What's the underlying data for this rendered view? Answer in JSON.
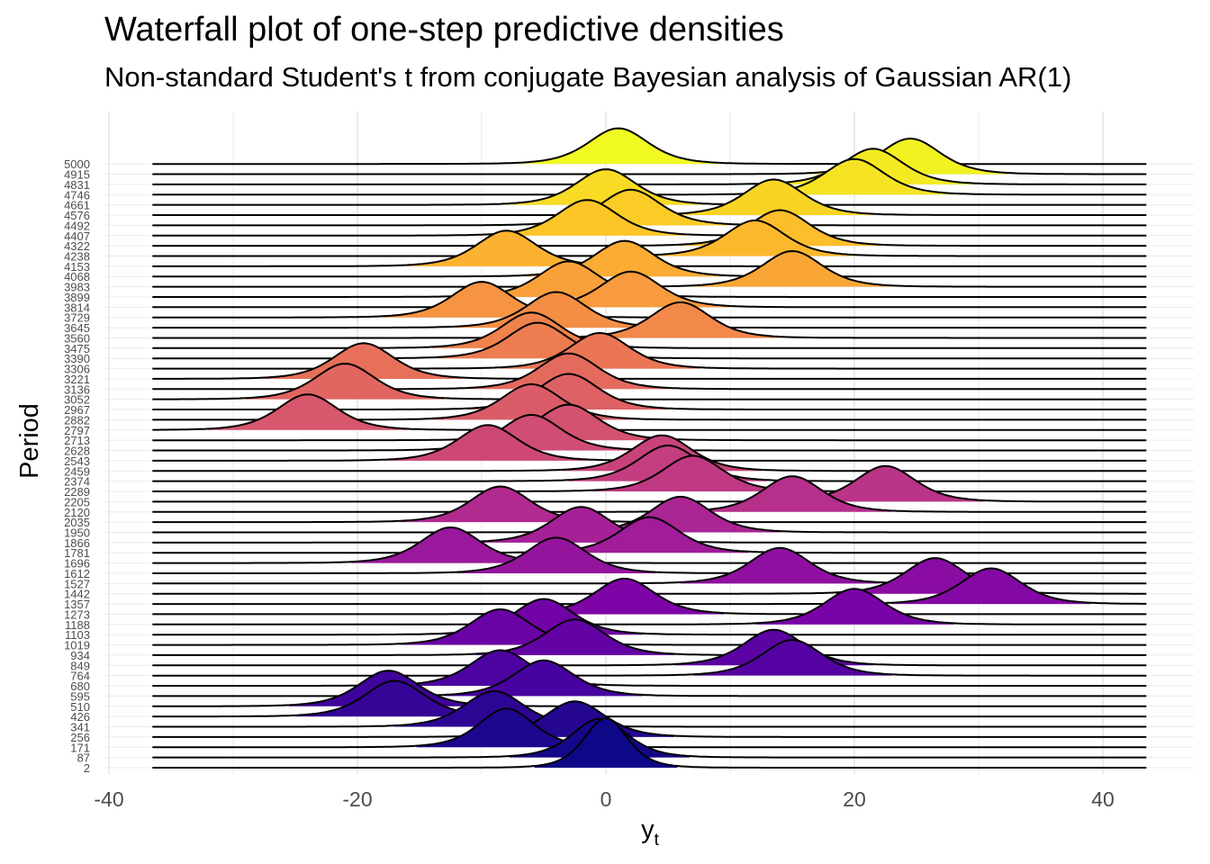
{
  "title": "Waterfall plot of one-step predictive densities",
  "subtitle": "Non-standard Student's t from conjugate Bayesian analysis of Gaussian AR(1)",
  "chart_data": {
    "type": "ridgeline",
    "title": "Waterfall plot of one-step predictive densities",
    "subtitle": "Non-standard Student's t from conjugate Bayesian analysis of Gaussian AR(1)",
    "xlabel": "y",
    "xlabel_subscript": "t",
    "ylabel": "Period",
    "xlim": [
      -40,
      43
    ],
    "xticks": [
      -40,
      -20,
      0,
      20,
      40
    ],
    "grid": true,
    "legend": "none",
    "colormap": "plasma",
    "density_scale": 2.5,
    "x_support": [
      -36.5,
      43.5
    ],
    "periods": [
      "2",
      "87",
      "171",
      "256",
      "341",
      "426",
      "510",
      "595",
      "680",
      "764",
      "849",
      "934",
      "1019",
      "1103",
      "1188",
      "1273",
      "1357",
      "1442",
      "1527",
      "1612",
      "1696",
      "1781",
      "1866",
      "1950",
      "2035",
      "2120",
      "2205",
      "2289",
      "2374",
      "2459",
      "2543",
      "2628",
      "2713",
      "2797",
      "2882",
      "2967",
      "3052",
      "3136",
      "3221",
      "3306",
      "3390",
      "3475",
      "3560",
      "3645",
      "3729",
      "3814",
      "3899",
      "3983",
      "4068",
      "4153",
      "4238",
      "4322",
      "4407",
      "4492",
      "4576",
      "4661",
      "4746",
      "4831",
      "4915",
      "5000"
    ],
    "locations": [
      0,
      -0.5,
      -8,
      -2.5,
      -9,
      -17,
      -17.5,
      -5,
      -8.5,
      15,
      13.5,
      -2.5,
      -8.5,
      -5,
      20,
      1.5,
      31,
      26.5,
      14,
      -4,
      -12.5,
      3.5,
      -2,
      6,
      -8.5,
      15,
      22.5,
      7,
      5,
      4.5,
      -9.5,
      -6,
      -3,
      -24,
      -6,
      -3,
      -21,
      -3,
      -19.5,
      -0.5,
      -5.5,
      -6,
      6,
      -4,
      -10,
      2,
      -3,
      15,
      1.5,
      -8,
      12,
      14,
      -1.5,
      2,
      13.5,
      0,
      20,
      21.5,
      24.5,
      1
    ],
    "scales": [
      1.8,
      2.3,
      2.3,
      2.5,
      2.5,
      2.5,
      2.5,
      2.5,
      2.5,
      2.5,
      2.5,
      2.5,
      2.5,
      2.5,
      2.5,
      2.5,
      2.5,
      2.5,
      2.5,
      2.5,
      2.5,
      2.5,
      2.5,
      2.5,
      2.5,
      2.5,
      2.5,
      2.5,
      2.5,
      2.5,
      2.5,
      2.5,
      2.5,
      2.5,
      2.5,
      2.5,
      2.5,
      2.5,
      2.5,
      2.5,
      2.5,
      2.5,
      2.5,
      2.5,
      2.5,
      2.5,
      2.5,
      2.5,
      2.5,
      2.5,
      2.5,
      2.5,
      2.5,
      2.5,
      2.5,
      2.5,
      2.5,
      2.5,
      2.5,
      2.5
    ]
  }
}
